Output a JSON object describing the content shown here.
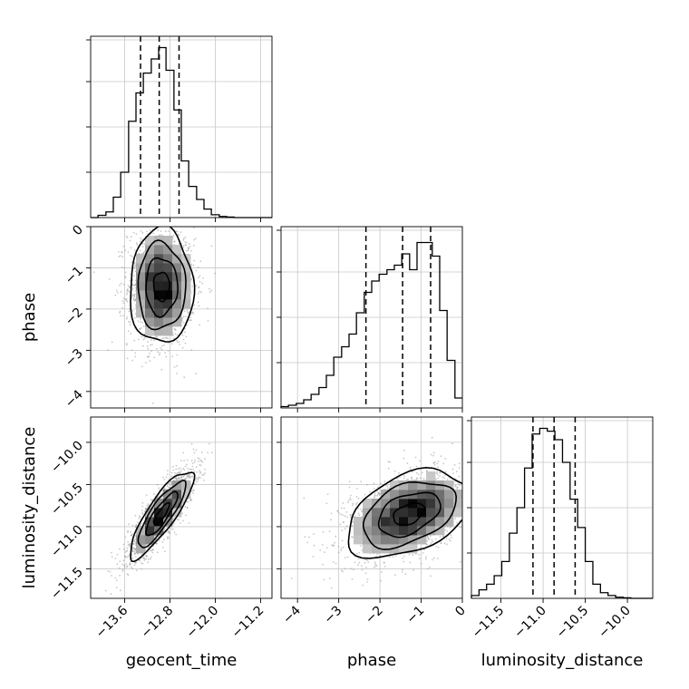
{
  "chart_data": {
    "type": "corner",
    "parameters": [
      "geocent_time",
      "phase",
      "luminosity_distance"
    ],
    "quantiles_marked": [
      0.16,
      0.5,
      0.84
    ],
    "grid": true,
    "marginals": [
      {
        "parameter": "geocent_time",
        "range": [
          -14.2,
          -11.0
        ],
        "ticks": [
          -13.6,
          -12.8,
          -12.0,
          -11.2
        ],
        "tick_labels": [
          "−13.6",
          "−12.8",
          "−12.0",
          "−11.2"
        ],
        "quantile_lines": [
          -13.32,
          -12.99,
          -12.64
        ],
        "bin_edges": [
          -14.2,
          -14.07,
          -13.93,
          -13.8,
          -13.67,
          -13.53,
          -13.4,
          -13.27,
          -13.13,
          -13.0,
          -12.87,
          -12.73,
          -12.6,
          -12.47,
          -12.33,
          -12.2,
          -12.07,
          -11.93,
          -11.8,
          -11.67,
          -11.53,
          -11.4,
          -11.27,
          -11.13,
          -11.0
        ],
        "counts": [
          0,
          4,
          10,
          36,
          80,
          170,
          220,
          255,
          280,
          300,
          260,
          190,
          100,
          55,
          32,
          15,
          5,
          2,
          1,
          0,
          0,
          0,
          0,
          0
        ],
        "ylim": [
          0,
          320
        ]
      },
      {
        "parameter": "phase",
        "range": [
          -4.4,
          0.0
        ],
        "ticks": [
          -4,
          -3,
          -2,
          -1,
          0
        ],
        "tick_labels": [
          "−4",
          "−3",
          "−2",
          "−1",
          "0"
        ],
        "quantile_lines": [
          -2.34,
          -1.45,
          -0.77
        ],
        "bin_edges": [
          -4.4,
          -4.22,
          -4.03,
          -3.85,
          -3.67,
          -3.48,
          -3.3,
          -3.12,
          -2.93,
          -2.75,
          -2.57,
          -2.38,
          -2.2,
          -2.02,
          -1.83,
          -1.65,
          -1.47,
          -1.28,
          -1.1,
          -0.92,
          -0.73,
          -0.55,
          -0.37,
          -0.18,
          0.0
        ],
        "counts": [
          3,
          6,
          10,
          18,
          30,
          45,
          72,
          112,
          135,
          163,
          210,
          255,
          280,
          295,
          305,
          315,
          340,
          305,
          365,
          365,
          335,
          215,
          105,
          22
        ],
        "ylim": [
          0,
          400
        ]
      },
      {
        "parameter": "luminosity_distance",
        "range": [
          -11.85,
          -9.7
        ],
        "ticks": [
          -11.5,
          -11.0,
          -10.5,
          -10.0
        ],
        "tick_labels": [
          "−11.5",
          "−11.0",
          "−10.5",
          "−10.0"
        ],
        "quantile_lines": [
          -11.12,
          -10.87,
          -10.62
        ],
        "bin_edges": [
          -11.85,
          -11.76,
          -11.67,
          -11.58,
          -11.49,
          -11.4,
          -11.31,
          -11.22,
          -11.13,
          -11.04,
          -10.95,
          -10.86,
          -10.77,
          -10.68,
          -10.59,
          -10.5,
          -10.41,
          -10.32,
          -10.23,
          -10.14,
          -10.05,
          -9.96,
          -9.87,
          -9.78,
          -9.7
        ],
        "counts": [
          5,
          15,
          25,
          40,
          65,
          115,
          160,
          230,
          290,
          300,
          295,
          280,
          240,
          175,
          125,
          65,
          25,
          10,
          5,
          2,
          1,
          0,
          0,
          0
        ],
        "ylim": [
          0,
          320
        ]
      }
    ],
    "pairs": [
      {
        "x": "geocent_time",
        "y": "phase",
        "xrange": [
          -14.2,
          -11.0
        ],
        "yrange": [
          -4.4,
          0.0
        ],
        "yticks": [
          0,
          -1,
          -2,
          -3,
          -4
        ],
        "ytick_labels": [
          "0",
          "−1",
          "−2",
          "−3",
          "−4"
        ],
        "mean": [
          -12.95,
          -1.45
        ],
        "sd": [
          0.28,
          0.7
        ],
        "rho": 0.0,
        "contour_sigma_levels": [
          0.5,
          1.0,
          1.5,
          2.0
        ]
      },
      {
        "x": "geocent_time",
        "y": "luminosity_distance",
        "xrange": [
          -14.2,
          -11.0
        ],
        "yrange": [
          -11.85,
          -9.7
        ],
        "yticks": [
          -10.0,
          -10.5,
          -11.0,
          -11.5
        ],
        "ytick_labels": [
          "−10.0",
          "−10.5",
          "−11.0",
          "−11.5"
        ],
        "mean": [
          -12.95,
          -10.85
        ],
        "sd": [
          0.28,
          0.26
        ],
        "rho": 0.85,
        "contour_sigma_levels": [
          0.5,
          1.0,
          1.5,
          2.0
        ]
      },
      {
        "x": "phase",
        "y": "luminosity_distance",
        "xrange": [
          -4.4,
          0.0
        ],
        "yrange": [
          -11.85,
          -9.7
        ],
        "mean": [
          -1.3,
          -10.85
        ],
        "sd": [
          0.75,
          0.26
        ],
        "rho": 0.4,
        "contour_sigma_levels": [
          0.5,
          1.0,
          1.5,
          2.0
        ]
      }
    ]
  }
}
